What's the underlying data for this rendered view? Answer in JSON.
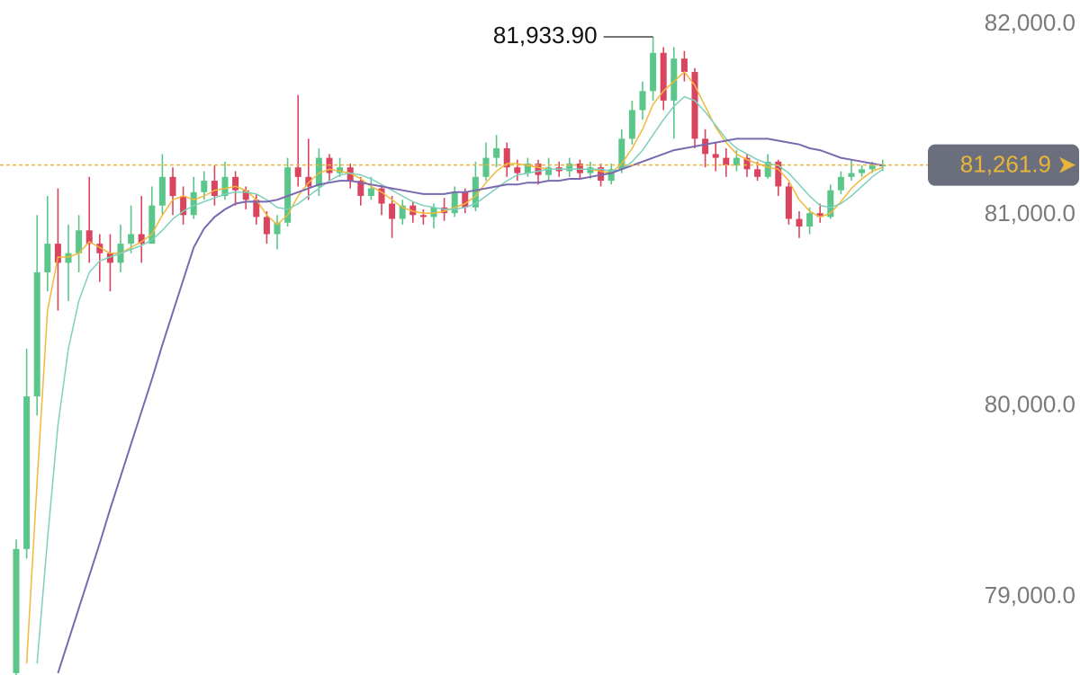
{
  "chart_data": {
    "type": "candlestick",
    "up_color": "#5ac68a",
    "down_color": "#d9455f",
    "open": [
      78600,
      79250,
      80050,
      80700,
      80850,
      80750,
      80800,
      80920,
      80850,
      80800,
      80750,
      80850,
      80900,
      80850,
      81050,
      81200,
      81100,
      81000,
      81120,
      81180,
      81100,
      81200,
      81130,
      81080,
      80990,
      80900,
      80960,
      81250,
      81200,
      81150,
      81300,
      81220,
      81250,
      81180,
      81100,
      81140,
      81060,
      80980,
      81050,
      81000,
      80990,
      81040,
      81010,
      81120,
      81040,
      81200,
      81300,
      81350,
      81250,
      81220,
      81270,
      81210,
      81250,
      81230,
      81270,
      81220,
      81250,
      81180,
      81240,
      81400,
      81550,
      81650,
      81850,
      81600,
      81820,
      81750,
      81400,
      81320,
      81300,
      81260,
      81300,
      81240,
      81200,
      81280,
      81150,
      80980,
      80940,
      81010,
      80990,
      81130,
      81200,
      81220,
      81240,
      81260
    ],
    "high": [
      79300,
      80300,
      81000,
      81100,
      81140,
      80950,
      81000,
      81200,
      80900,
      80900,
      80950,
      81050,
      81100,
      81150,
      81320,
      81250,
      81150,
      81200,
      81230,
      81260,
      81280,
      81230,
      81150,
      81110,
      81020,
      81000,
      81300,
      81630,
      81400,
      81350,
      81320,
      81300,
      81270,
      81200,
      81200,
      81160,
      81100,
      81080,
      81070,
      81030,
      81060,
      81090,
      81150,
      81140,
      81280,
      81380,
      81420,
      81380,
      81290,
      81300,
      81290,
      81300,
      81280,
      81300,
      81290,
      81280,
      81270,
      81270,
      81450,
      81600,
      81700,
      81933.9,
      81880,
      81880,
      81860,
      81770,
      81450,
      81380,
      81350,
      81340,
      81320,
      81280,
      81320,
      81290,
      81170,
      81020,
      81040,
      81060,
      81160,
      81230,
      81290,
      81260,
      81280,
      81290
    ],
    "low": [
      78590,
      79200,
      79950,
      80600,
      80500,
      80550,
      80700,
      80750,
      80650,
      80600,
      80700,
      80800,
      80750,
      80850,
      81000,
      81000,
      80950,
      80980,
      81080,
      81050,
      81080,
      81050,
      81030,
      80950,
      80850,
      80820,
      80940,
      81150,
      81080,
      81100,
      81180,
      81200,
      81140,
      81050,
      81080,
      81000,
      80880,
      80950,
      80960,
      80950,
      80930,
      80970,
      80990,
      81010,
      81020,
      81180,
      81250,
      81200,
      81180,
      81200,
      81160,
      81180,
      81200,
      81200,
      81190,
      81190,
      81150,
      81160,
      81220,
      81370,
      81500,
      81600,
      81550,
      81400,
      81700,
      81350,
      81250,
      81230,
      81200,
      81230,
      81200,
      81180,
      81190,
      81100,
      80950,
      80880,
      80900,
      80960,
      80980,
      81110,
      81180,
      81200,
      81220,
      81230
    ],
    "close": [
      79250,
      80050,
      80700,
      80850,
      80750,
      80800,
      80920,
      80850,
      80800,
      80750,
      80850,
      80900,
      80850,
      81050,
      81200,
      81100,
      81000,
      81120,
      81180,
      81100,
      81200,
      81130,
      81080,
      80990,
      80900,
      80960,
      81250,
      81200,
      81150,
      81300,
      81220,
      81250,
      81180,
      81100,
      81140,
      81060,
      80980,
      81050,
      81000,
      80990,
      81040,
      81010,
      81120,
      81040,
      81200,
      81300,
      81350,
      81250,
      81220,
      81270,
      81210,
      81250,
      81230,
      81270,
      81220,
      81250,
      81180,
      81240,
      81400,
      81550,
      81650,
      81850,
      81600,
      81820,
      81750,
      81400,
      81320,
      81300,
      81260,
      81300,
      81240,
      81200,
      81280,
      81150,
      80980,
      80940,
      81010,
      80990,
      81130,
      81200,
      81220,
      81240,
      81260,
      81261.9
    ],
    "ma": [
      {
        "color": "#f0b93a",
        "values": [
          null,
          78650,
          79600,
          80500,
          80780,
          80780,
          80800,
          80860,
          80830,
          80800,
          80800,
          80830,
          80860,
          80900,
          81000,
          81080,
          81100,
          81080,
          81100,
          81130,
          81140,
          81150,
          81130,
          81080,
          81000,
          80950,
          81000,
          81100,
          81170,
          81220,
          81240,
          81230,
          81220,
          81190,
          81150,
          81120,
          81080,
          81040,
          81020,
          81010,
          81010,
          81020,
          81040,
          81060,
          81100,
          81170,
          81230,
          81270,
          81270,
          81260,
          81250,
          81240,
          81240,
          81240,
          81240,
          81240,
          81230,
          81220,
          81270,
          81350,
          81450,
          81580,
          81650,
          81700,
          81750,
          81680,
          81570,
          81460,
          81380,
          81320,
          81290,
          81270,
          81250,
          81240,
          81180,
          81080,
          81020,
          80990,
          81010,
          81070,
          81140,
          81190,
          81230,
          81250
        ]
      },
      {
        "color": "#7ecfbd",
        "values": [
          null,
          null,
          78650,
          79300,
          79900,
          80300,
          80550,
          80700,
          80760,
          80780,
          80800,
          80820,
          80840,
          80870,
          80920,
          80980,
          81020,
          81050,
          81070,
          81090,
          81110,
          81120,
          81120,
          81110,
          81080,
          81040,
          81030,
          81060,
          81100,
          81140,
          81180,
          81210,
          81220,
          81210,
          81190,
          81160,
          81130,
          81100,
          81070,
          81050,
          81040,
          81030,
          81030,
          81040,
          81060,
          81100,
          81140,
          81180,
          81210,
          81220,
          81230,
          81240,
          81240,
          81240,
          81240,
          81240,
          81240,
          81230,
          81240,
          81280,
          81340,
          81420,
          81500,
          81570,
          81620,
          81600,
          81540,
          81470,
          81400,
          81350,
          81320,
          81290,
          81270,
          81260,
          81220,
          81160,
          81100,
          81050,
          81040,
          81060,
          81100,
          81150,
          81200,
          81240
        ]
      },
      {
        "color": "#7b69b0",
        "values": [
          null,
          null,
          null,
          null,
          78600,
          78770,
          78940,
          79110,
          79280,
          79460,
          79630,
          79800,
          79970,
          80140,
          80320,
          80490,
          80660,
          80830,
          80930,
          80990,
          81030,
          81060,
          81070,
          81070,
          81070,
          81080,
          81100,
          81120,
          81140,
          81160,
          81170,
          81180,
          81180,
          81170,
          81160,
          81150,
          81140,
          81130,
          81120,
          81110,
          81110,
          81110,
          81120,
          81120,
          81130,
          81140,
          81150,
          81160,
          81160,
          81170,
          81170,
          81180,
          81180,
          81190,
          81190,
          81200,
          81210,
          81220,
          81240,
          81260,
          81280,
          81300,
          81320,
          81340,
          81350,
          81360,
          81370,
          81380,
          81390,
          81400,
          81400,
          81400,
          81400,
          81390,
          81380,
          81370,
          81350,
          81340,
          81320,
          81300,
          81290,
          81280,
          81270,
          81260
        ]
      }
    ],
    "max_high_label": "81,933.90",
    "price_line": {
      "value": 81261.9,
      "label": "81,261.9",
      "color": "#e8b53a",
      "tag_color": "#6b6f7d"
    },
    "ylim": [
      78590,
      82127
    ],
    "yticks": [
      {
        "value": 79000,
        "label": "79,000.0"
      },
      {
        "value": 80000,
        "label": "80,000.0"
      },
      {
        "value": 81000,
        "label": "81,000.0"
      },
      {
        "value": 82000,
        "label": "82,000.0"
      }
    ]
  }
}
